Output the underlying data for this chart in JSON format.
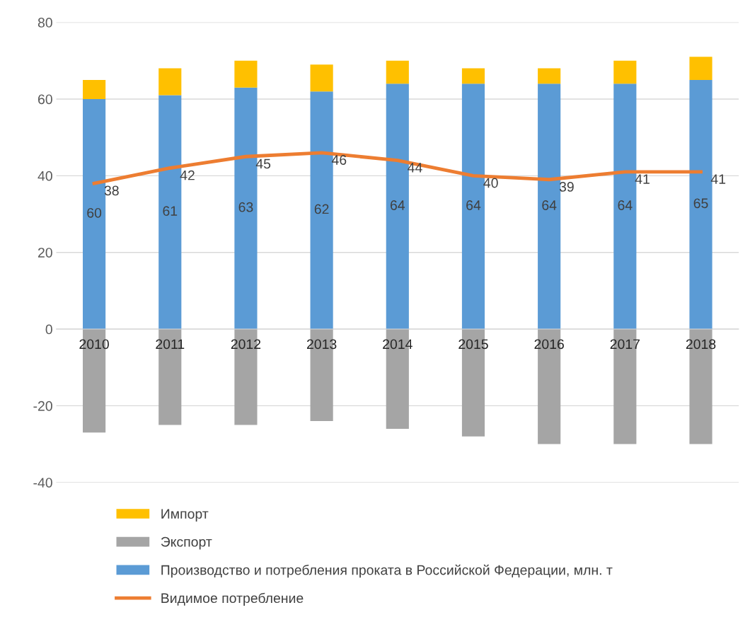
{
  "chart_data": {
    "type": "bar",
    "stacked": true,
    "categories": [
      "2010",
      "2011",
      "2012",
      "2013",
      "2014",
      "2015",
      "2016",
      "2017",
      "2018"
    ],
    "series": [
      {
        "name": "Производство и потребления проката в Российской Федерации, млн. т",
        "color": "#5b9bd5",
        "values": [
          60,
          61,
          63,
          62,
          64,
          64,
          64,
          64,
          65
        ],
        "value_labels": [
          "60",
          "61",
          "63",
          "62",
          "64",
          "64",
          "64",
          "64",
          "65"
        ]
      },
      {
        "name": "Экспорт",
        "color": "#a5a5a5",
        "values": [
          -27,
          -25,
          -25,
          -24,
          -26,
          -28,
          -30,
          -30,
          -30
        ]
      },
      {
        "name": "Импорт",
        "color": "#ffc000",
        "values": [
          5,
          7,
          7,
          7,
          6,
          4,
          4,
          6,
          6
        ]
      },
      {
        "name": "Видимое потребление",
        "type": "line",
        "color": "#ed7d31",
        "values": [
          38,
          42,
          45,
          46,
          44,
          40,
          39,
          41,
          41
        ],
        "value_labels": [
          "38",
          "42",
          "45",
          "46",
          "44",
          "40",
          "39",
          "41",
          "41"
        ]
      }
    ],
    "ylim": [
      -40,
      80
    ],
    "yticks": [
      -40,
      -20,
      0,
      20,
      40,
      60,
      80
    ],
    "grid": "y",
    "legend": "bottom",
    "marker": "none",
    "line_style": "solid"
  }
}
